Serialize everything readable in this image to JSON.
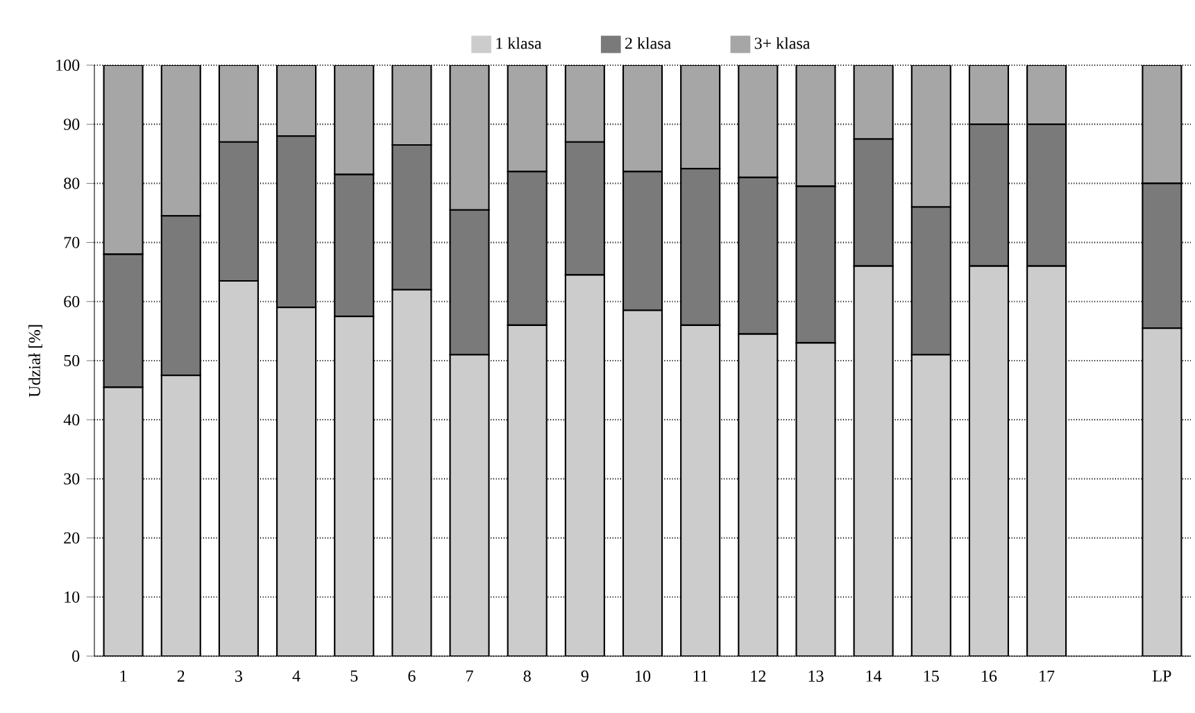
{
  "chart_data": {
    "type": "bar",
    "stacked": true,
    "ylabel": "Udział [%]",
    "categories": [
      "1",
      "2",
      "3",
      "4",
      "5",
      "6",
      "7",
      "8",
      "9",
      "10",
      "11",
      "12",
      "13",
      "14",
      "15",
      "16",
      "17",
      null,
      "LP"
    ],
    "series": [
      {
        "name": "1 klasa",
        "color": "#cccccc",
        "values": [
          45.5,
          47.5,
          63.5,
          59,
          57.5,
          62,
          51,
          56,
          64.5,
          58.5,
          56,
          54.5,
          53,
          66,
          51,
          66,
          66,
          null,
          55.5
        ]
      },
      {
        "name": "2 klasa",
        "color": "#7a7a7a",
        "values": [
          22.5,
          27,
          23.5,
          29,
          24,
          24.5,
          24.5,
          26,
          22.5,
          23.5,
          26.5,
          26.5,
          26.5,
          21.5,
          25,
          24,
          24,
          null,
          24.5
        ]
      },
      {
        "name": "3+ klasa",
        "color": "#a6a6a6",
        "values": [
          32,
          25.5,
          13,
          12,
          18.5,
          13.5,
          24.5,
          18,
          13,
          18,
          17.5,
          19,
          20.5,
          12.5,
          24,
          10,
          10,
          null,
          20
        ]
      }
    ],
    "ylim": [
      0,
      100
    ],
    "yticks": [
      0,
      10,
      20,
      30,
      40,
      50,
      60,
      70,
      80,
      90,
      100
    ],
    "grid": "y",
    "legend": "top"
  }
}
